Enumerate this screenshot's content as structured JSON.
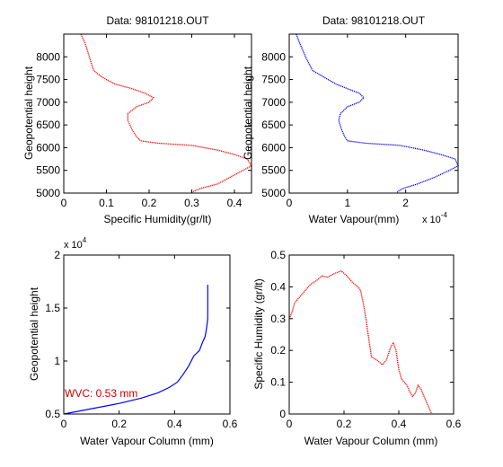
{
  "window": {
    "background": "#ffffff"
  },
  "chart_data": [
    {
      "type": "line",
      "title": "Data: 98101218.OUT",
      "xlabel": "Specific Humidity(gr/lt)",
      "ylabel": "Geopotential height",
      "xlim": [
        0,
        0.44
      ],
      "ylim": [
        5000,
        8500
      ],
      "xticks": [
        0,
        0.1,
        0.2,
        0.3,
        0.4
      ],
      "xticklabels": [
        "0",
        "0.1",
        "0.2",
        "0.3",
        "0.4"
      ],
      "yticks": [
        5000,
        5500,
        6000,
        6500,
        7000,
        7500,
        8000
      ],
      "yticklabels": [
        "5000",
        "5500",
        "6000",
        "6500",
        "7000",
        "7500",
        "8000"
      ],
      "x_exponent_label": "",
      "y_exponent_label": "",
      "annotation": "",
      "series": [
        {
          "color": "#ff0000",
          "style": "dotted",
          "x": [
            0.04,
            0.05,
            0.06,
            0.07,
            0.09,
            0.12,
            0.16,
            0.19,
            0.21,
            0.2,
            0.17,
            0.15,
            0.15,
            0.16,
            0.17,
            0.18,
            0.22,
            0.3,
            0.36,
            0.4,
            0.43,
            0.44,
            0.42,
            0.39,
            0.36,
            0.32,
            0.3
          ],
          "y": [
            8500,
            8300,
            8000,
            7700,
            7550,
            7400,
            7300,
            7200,
            7100,
            7000,
            6900,
            6750,
            6600,
            6400,
            6250,
            6150,
            6100,
            6050,
            5950,
            5850,
            5750,
            5600,
            5500,
            5350,
            5200,
            5100,
            5020
          ]
        }
      ]
    },
    {
      "type": "line",
      "title": "Data: 98101218.OUT",
      "xlabel": "Water Vapour(mm)",
      "ylabel": "Geopotential height",
      "xlim": [
        0,
        0.00029
      ],
      "ylim": [
        5000,
        8500
      ],
      "xticks": [
        0,
        0.0001,
        0.0002
      ],
      "xticklabels": [
        "0",
        "1",
        "2"
      ],
      "yticks": [
        5000,
        5500,
        6000,
        6500,
        7000,
        7500,
        8000
      ],
      "yticklabels": [
        "5000",
        "5500",
        "6000",
        "6500",
        "7000",
        "7500",
        "8000"
      ],
      "x_exponent_label": "x 10",
      "x_exponent_power": "-4",
      "y_exponent_label": "",
      "annotation": "",
      "series": [
        {
          "color": "#0000ff",
          "style": "dotted",
          "x": [
            1.2e-05,
            1.8e-05,
            2.8e-05,
            4e-05,
            6e-05,
            8e-05,
            0.0001,
            0.00012,
            0.000128,
            0.00012,
            0.0001,
            8.8e-05,
            8.5e-05,
            9e-05,
            9.5e-05,
            0.0001,
            0.00013,
            0.00019,
            0.00023,
            0.00026,
            0.000285,
            0.00029,
            0.000275,
            0.00025,
            0.00022,
            0.000195,
            0.000185
          ],
          "y": [
            8500,
            8300,
            8000,
            7700,
            7550,
            7400,
            7300,
            7200,
            7100,
            7000,
            6900,
            6750,
            6600,
            6400,
            6250,
            6150,
            6100,
            6050,
            5950,
            5850,
            5750,
            5600,
            5500,
            5350,
            5200,
            5100,
            5020
          ]
        }
      ]
    },
    {
      "type": "line",
      "title": "",
      "xlabel": "Water Vapour Column (mm)",
      "ylabel": "Geopotential height",
      "xlim": [
        0,
        0.6
      ],
      "ylim": [
        5000,
        20000
      ],
      "xticks": [
        0,
        0.2,
        0.4,
        0.6
      ],
      "xticklabels": [
        "0",
        "0.2",
        "0.4",
        "0.6"
      ],
      "yticks": [
        5000,
        10000,
        15000,
        20000
      ],
      "yticklabels": [
        "0.5",
        "1",
        "1.5",
        "2"
      ],
      "x_exponent_label": "",
      "y_exponent_label": "x 10",
      "y_exponent_power": "4",
      "annotation": "WVC: 0.53 mm",
      "annotation_color": "#cc0000",
      "series": [
        {
          "color": "#0000ff",
          "style": "solid",
          "x": [
            0,
            0.1,
            0.2,
            0.28,
            0.34,
            0.38,
            0.41,
            0.43,
            0.45,
            0.47,
            0.49,
            0.5,
            0.51,
            0.515,
            0.52,
            0.52,
            0.52
          ],
          "y": [
            5000,
            5500,
            6000,
            6500,
            7000,
            7500,
            8000,
            8700,
            9500,
            10500,
            11000,
            11700,
            12300,
            13000,
            14000,
            15500,
            17200
          ]
        }
      ]
    },
    {
      "type": "line",
      "title": "",
      "xlabel": "Water Vapour Column (mm)",
      "ylabel": "Specific Humidity (gr/lt)",
      "xlim": [
        0,
        0.6
      ],
      "ylim": [
        0,
        0.5
      ],
      "xticks": [
        0,
        0.2,
        0.4,
        0.6
      ],
      "xticklabels": [
        "0",
        "0.2",
        "0.4",
        "0.6"
      ],
      "yticks": [
        0,
        0.1,
        0.2,
        0.3,
        0.4,
        0.5
      ],
      "yticklabels": [
        "0",
        "0.1",
        "0.2",
        "0.3",
        "0.4",
        "0.5"
      ],
      "x_exponent_label": "",
      "y_exponent_label": "",
      "annotation": "",
      "series": [
        {
          "color": "#ff0000",
          "style": "dotted",
          "x": [
            0,
            0.01,
            0.02,
            0.04,
            0.06,
            0.08,
            0.1,
            0.12,
            0.14,
            0.16,
            0.19,
            0.21,
            0.23,
            0.25,
            0.26,
            0.27,
            0.28,
            0.29,
            0.3,
            0.32,
            0.34,
            0.355,
            0.37,
            0.38,
            0.39,
            0.4,
            0.41,
            0.42,
            0.43,
            0.44,
            0.45,
            0.46,
            0.47,
            0.48,
            0.49,
            0.5,
            0.51,
            0.52
          ],
          "y": [
            0.3,
            0.32,
            0.35,
            0.37,
            0.39,
            0.41,
            0.42,
            0.435,
            0.43,
            0.44,
            0.45,
            0.435,
            0.415,
            0.4,
            0.39,
            0.35,
            0.3,
            0.24,
            0.18,
            0.17,
            0.155,
            0.17,
            0.21,
            0.225,
            0.2,
            0.14,
            0.11,
            0.1,
            0.09,
            0.07,
            0.055,
            0.065,
            0.09,
            0.08,
            0.06,
            0.04,
            0.02,
            0
          ]
        }
      ]
    }
  ]
}
